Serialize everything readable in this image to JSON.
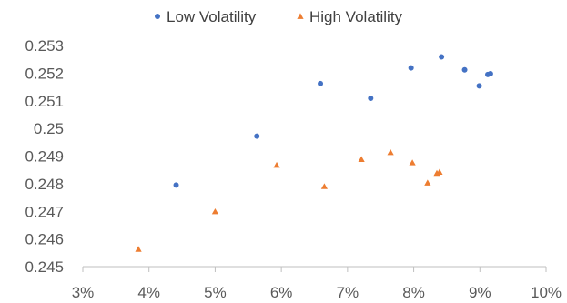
{
  "chart_data": {
    "type": "scatter",
    "title": "",
    "xlabel": "",
    "ylabel": "",
    "xlim": [
      0.03,
      0.1
    ],
    "ylim": [
      0.245,
      0.253
    ],
    "x_ticks": [
      0.03,
      0.04,
      0.05,
      0.06,
      0.07,
      0.08,
      0.09,
      0.1
    ],
    "x_tick_labels": [
      "3%",
      "4%",
      "5%",
      "6%",
      "7%",
      "8%",
      "9%",
      "10%"
    ],
    "y_ticks": [
      0.245,
      0.246,
      0.247,
      0.248,
      0.249,
      0.25,
      0.251,
      0.252,
      0.253
    ],
    "y_tick_labels": [
      "0.245",
      "0.246",
      "0.247",
      "0.248",
      "0.249",
      "0.25",
      "0.251",
      "0.252",
      "0.253"
    ],
    "grid": false,
    "legend_position": "top",
    "series": [
      {
        "name": "Low Volatility",
        "marker": "circle",
        "color": "#4472C4",
        "points": [
          {
            "x": 0.0441,
            "y": 0.24795
          },
          {
            "x": 0.0563,
            "y": 0.24972
          },
          {
            "x": 0.0659,
            "y": 0.25162
          },
          {
            "x": 0.0735,
            "y": 0.25109
          },
          {
            "x": 0.0796,
            "y": 0.25219
          },
          {
            "x": 0.0842,
            "y": 0.25259
          },
          {
            "x": 0.0877,
            "y": 0.25212
          },
          {
            "x": 0.0899,
            "y": 0.25154
          },
          {
            "x": 0.0912,
            "y": 0.25195
          },
          {
            "x": 0.0916,
            "y": 0.25198
          }
        ]
      },
      {
        "name": "High Volatility",
        "marker": "triangle",
        "color": "#ED7D31",
        "points": [
          {
            "x": 0.0384,
            "y": 0.24563
          },
          {
            "x": 0.05,
            "y": 0.24699
          },
          {
            "x": 0.0593,
            "y": 0.24867
          },
          {
            "x": 0.0665,
            "y": 0.2479
          },
          {
            "x": 0.0721,
            "y": 0.24888
          },
          {
            "x": 0.0765,
            "y": 0.24913
          },
          {
            "x": 0.0798,
            "y": 0.24876
          },
          {
            "x": 0.0821,
            "y": 0.24803
          },
          {
            "x": 0.0835,
            "y": 0.24838
          },
          {
            "x": 0.0839,
            "y": 0.24842
          }
        ]
      }
    ]
  }
}
